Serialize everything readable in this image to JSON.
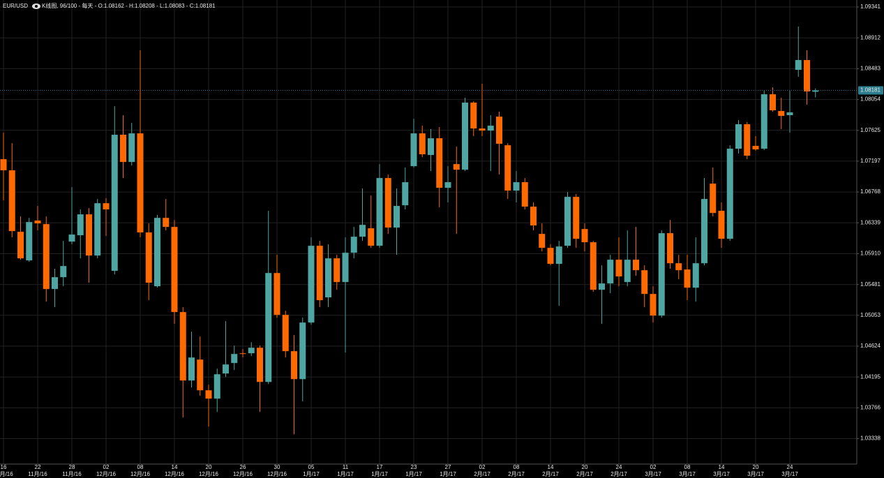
{
  "chart_data": {
    "type": "candlestick",
    "symbol": "EUR/USD",
    "chart_name": "K线图, 96/100",
    "period": "每天",
    "separator": " - ",
    "ohlc_prefixes": [
      "O:",
      "H:",
      "L:",
      "C:"
    ],
    "up_color": "#4fa5a1",
    "down_color": "#ff6a00",
    "grid": true,
    "ylim": [
      1.02984,
      1.09438
    ],
    "yticks": [
      1.09341,
      1.08912,
      1.08483,
      1.08054,
      1.07625,
      1.07197,
      1.06768,
      1.06339,
      {
        "value": 1.0591,
        "label": "1.05910"
      },
      1.05481,
      1.05053,
      1.04624,
      1.04195,
      1.03766,
      1.03338
    ],
    "categories": [
      "16",
      null,
      null,
      null,
      "22",
      null,
      null,
      null,
      "28",
      null,
      null,
      null,
      "02",
      null,
      null,
      null,
      "08",
      null,
      null,
      null,
      "14",
      null,
      null,
      null,
      "20",
      null,
      null,
      null,
      "26",
      null,
      null,
      null,
      "30",
      null,
      null,
      null,
      "05",
      null,
      null,
      null,
      "11",
      null,
      null,
      null,
      "17",
      null,
      null,
      null,
      "23",
      null,
      null,
      null,
      "27",
      null,
      null,
      null,
      "02",
      null,
      null,
      null,
      "08",
      null,
      null,
      null,
      "14",
      null,
      null,
      null,
      "20",
      null,
      null,
      null,
      "24",
      null,
      null,
      null,
      "02",
      null,
      null,
      null,
      "08",
      null,
      null,
      null,
      "14",
      null,
      null,
      null,
      "20",
      null,
      null,
      null,
      "24",
      null,
      null,
      null
    ],
    "category_months": [
      "11月/16",
      null,
      null,
      null,
      "11月/16",
      null,
      null,
      null,
      "11月/16",
      null,
      null,
      null,
      "12月/16",
      null,
      null,
      null,
      "12月/16",
      null,
      null,
      null,
      "12月/16",
      null,
      null,
      null,
      "12月/16",
      null,
      null,
      null,
      "12月/16",
      null,
      null,
      null,
      "12月/16",
      null,
      null,
      null,
      "1月/17",
      null,
      null,
      null,
      "1月/17",
      null,
      null,
      null,
      "1月/17",
      null,
      null,
      null,
      "1月/17",
      null,
      null,
      null,
      "1月/17",
      null,
      null,
      null,
      "2月/17",
      null,
      null,
      null,
      "2月/17",
      null,
      null,
      null,
      "2月/17",
      null,
      null,
      null,
      "2月/17",
      null,
      null,
      null,
      "2月/17",
      null,
      null,
      null,
      "3月/17",
      null,
      null,
      null,
      "3月/17",
      null,
      null,
      null,
      "3月/17",
      null,
      null,
      null,
      "3月/17",
      null,
      null,
      null,
      "3月/17",
      null,
      null,
      null
    ],
    "open": [
      1.07224,
      1.07069,
      1.06214,
      1.05816,
      1.0637,
      1.06321,
      1.05418,
      1.05583,
      1.06078,
      1.06166,
      1.06457,
      1.05884,
      1.06612,
      1.05671,
      1.07564,
      1.07185,
      1.07583,
      1.06205,
      1.05457,
      1.06408,
      1.06282,
      1.05098,
      1.04146,
      1.04437,
      1.0401,
      1.03894,
      1.04243,
      1.04389,
      1.04525,
      1.04525,
      1.04602,
      1.04126,
      1.05641,
      1.05059,
      1.04554,
      1.04165,
      1.04952,
      1.0602,
      1.05302,
      1.05845,
      1.05515,
      1.05923,
      1.06146,
      1.06263,
      1.0602,
      1.06962,
      1.06273,
      1.06583,
      1.07127,
      1.07583,
      1.07282,
      1.07515,
      1.06826,
      1.07156,
      1.07078,
      1.08011,
      1.07651,
      1.07622,
      1.07816,
      1.07418,
      1.06787,
      1.06904,
      1.06564,
      1.06185,
      1.05991,
      1.05768,
      1.0602,
      1.067,
      1.06253,
      1.06069,
      1.05408,
      1.05496,
      1.05826,
      1.05515,
      1.05826,
      1.0568,
      1.0535,
      1.05049,
      1.06195,
      1.05777,
      1.0569,
      1.05437,
      1.05777,
      1.06884,
      1.06506,
      1.06117,
      1.0737,
      1.0771,
      1.07409,
      1.0737,
      1.08127,
      1.07894,
      1.07836,
      1.08467,
      1.08603,
      1.08162
    ],
    "high": [
      1.07593,
      1.07447,
      1.06428,
      1.06408,
      1.06574,
      1.06428,
      1.057,
      1.06088,
      1.06836,
      1.06525,
      1.06544,
      1.06671,
      1.0668,
      1.07962,
      1.07836,
      1.07729,
      1.08739,
      1.06331,
      1.06447,
      1.06671,
      1.06379,
      1.05166,
      1.04826,
      1.04758,
      1.04088,
      1.04311,
      1.04971,
      1.04631,
      1.04583,
      1.0468,
      1.04631,
      1.06506,
      1.05894,
      1.05117,
      1.04777,
      1.0502,
      1.06137,
      1.06088,
      1.0604,
      1.05894,
      1.06137,
      1.06282,
      1.06816,
      1.06719,
      1.07156,
      1.07011,
      1.06816,
      1.07108,
      1.07787,
      1.0769,
      1.07642,
      1.07671,
      1.07127,
      1.07399,
      1.08079,
      1.0803,
      1.08273,
      1.07836,
      1.07885,
      1.07447,
      1.07059,
      1.06962,
      1.06622,
      1.06331,
      1.0604,
      1.06088,
      1.06768,
      1.06739,
      1.06331,
      1.06088,
      1.05748,
      1.05894,
      1.06137,
      1.06234,
      1.06282,
      1.05748,
      1.05457,
      1.06234,
      1.06379,
      1.05894,
      1.05894,
      1.06137,
      1.06962,
      1.07108,
      1.06622,
      1.07418,
      1.07768,
      1.07739,
      1.07545,
      1.08176,
      1.08224,
      1.08079,
      1.08176,
      1.09069,
      1.08739,
      1.08208
    ],
    "low": [
      1.06651,
      1.06137,
      1.05826,
      1.05797,
      1.06234,
      1.05243,
      1.05166,
      1.05457,
      1.0604,
      1.05845,
      1.05506,
      1.05845,
      1.06156,
      1.05622,
      1.06962,
      1.07137,
      1.06137,
      1.05263,
      1.05437,
      1.06234,
      1.04933,
      1.03631,
      1.04049,
      1.03933,
      1.03505,
      1.03709,
      1.04195,
      1.04292,
      1.04466,
      1.04486,
      1.03709,
      1.04097,
      1.0502,
      1.04466,
      1.03398,
      1.03855,
      1.04923,
      1.05166,
      1.05166,
      1.05408,
      1.04535,
      1.05845,
      1.06088,
      1.05991,
      1.05991,
      1.06185,
      1.05894,
      1.06525,
      1.07108,
      1.07253,
      1.07059,
      1.06554,
      1.06622,
      1.06185,
      1.07059,
      1.07545,
      1.07545,
      1.07059,
      1.07011,
      1.06671,
      1.06622,
      1.06525,
      1.06234,
      1.05942,
      1.05748,
      1.05185,
      1.05991,
      1.05991,
      1.05942,
      1.05379,
      1.04933,
      1.0536,
      1.05457,
      1.05457,
      1.05603,
      1.05166,
      1.04952,
      1.0502,
      1.057,
      1.05554,
      1.05263,
      1.05243,
      1.05748,
      1.06428,
      1.05991,
      1.06088,
      1.07302,
      1.07224,
      1.07341,
      1.07351,
      1.07885,
      1.07642,
      1.07593,
      1.0837,
      1.07982,
      1.08083
    ],
    "close": [
      1.07069,
      1.06224,
      1.05845,
      1.0635,
      1.06331,
      1.05418,
      1.05583,
      1.05738,
      1.06176,
      1.06457,
      1.05884,
      1.06612,
      1.06525,
      1.07564,
      1.07185,
      1.07583,
      1.06205,
      1.05506,
      1.06408,
      1.06282,
      1.05098,
      1.04146,
      1.04466,
      1.0401,
      1.03894,
      1.04233,
      1.04369,
      1.04515,
      1.04515,
      1.04602,
      1.04126,
      1.05641,
      1.05059,
      1.04554,
      1.04165,
      1.04952,
      1.0602,
      1.05263,
      1.05845,
      1.05515,
      1.05923,
      1.06146,
      1.06311,
      1.0602,
      1.06962,
      1.06273,
      1.06574,
      1.06904,
      1.07583,
      1.07292,
      1.07515,
      1.06826,
      1.06904,
      1.07078,
      1.08011,
      1.07651,
      1.07622,
      1.0769,
      1.07438,
      1.06787,
      1.06904,
      1.06564,
      1.06302,
      1.05991,
      1.05768,
      1.0601,
      1.067,
      1.06117,
      1.06069,
      1.05408,
      1.05496,
      1.05826,
      1.05593,
      1.05826,
      1.0568,
      1.0535,
      1.05049,
      1.06195,
      1.05777,
      1.0568,
      1.05437,
      1.05777,
      1.06671,
      1.06476,
      1.06117,
      1.0737,
      1.0771,
      1.07273,
      1.0736,
      1.08127,
      1.07904,
      1.07826,
      1.07875,
      1.08603,
      1.08166,
      1.08181
    ]
  }
}
